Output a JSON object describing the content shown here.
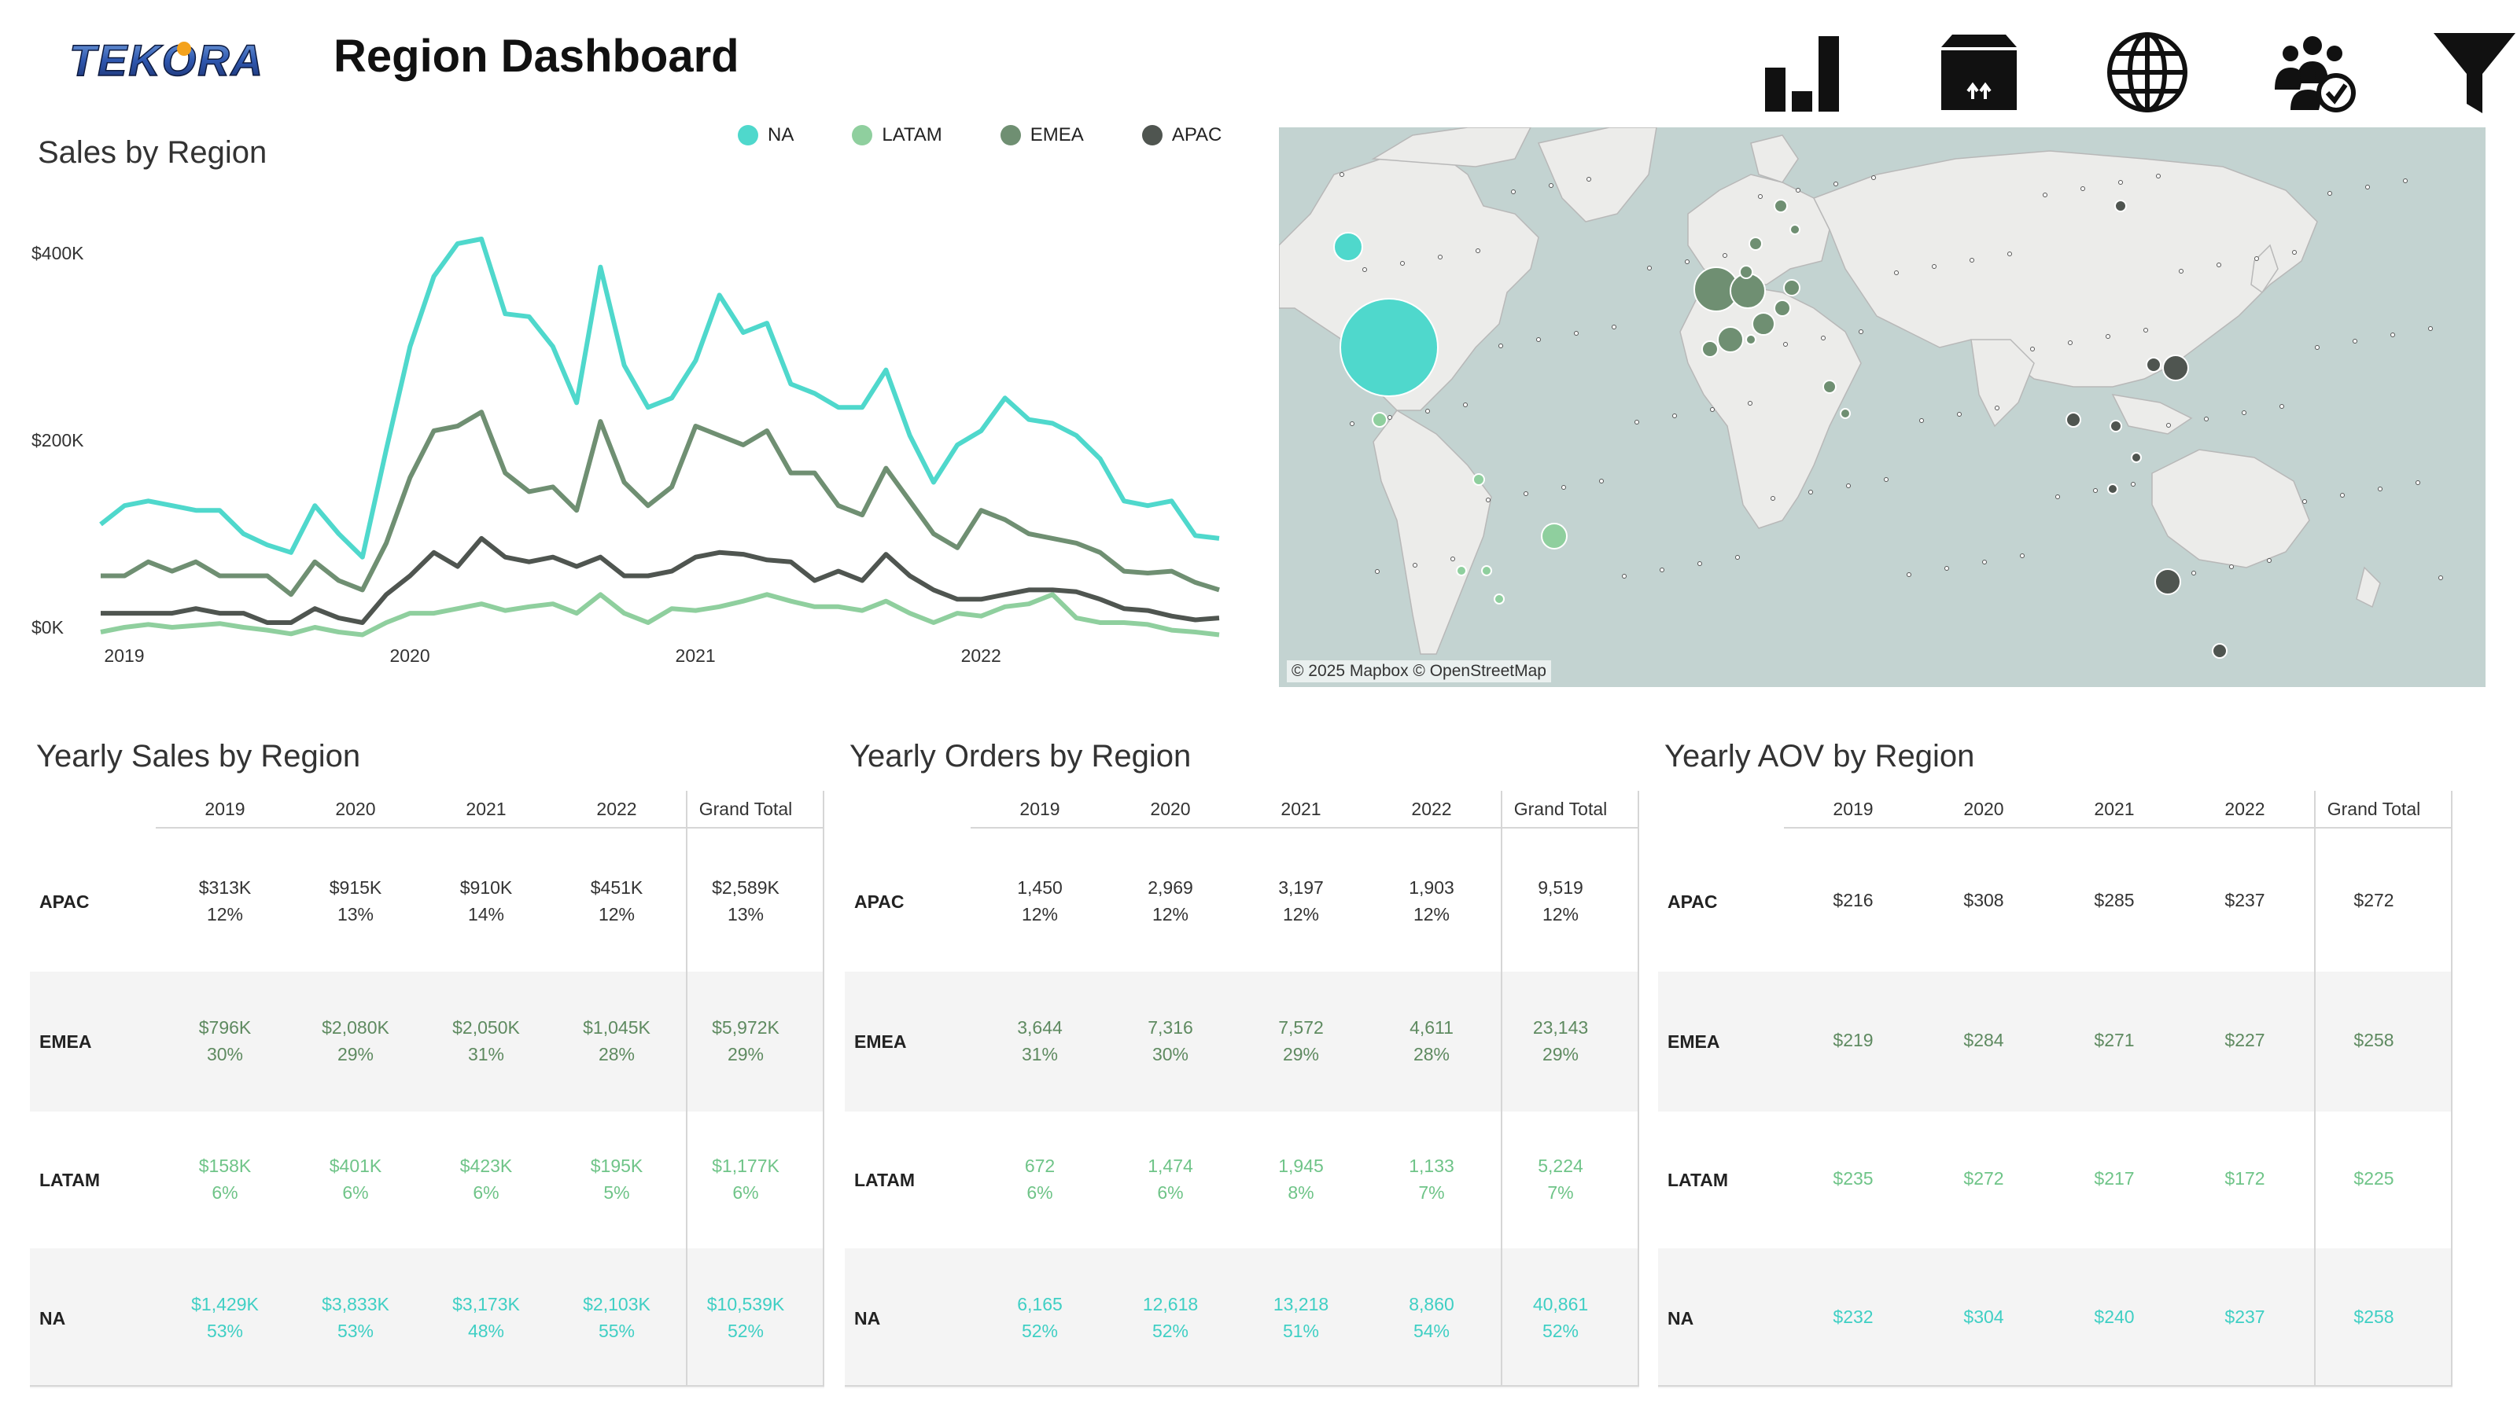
{
  "header": {
    "logo_text": "TEKORA",
    "title": "Region Dashboard",
    "nav_icons": [
      "bar-chart-icon",
      "package-icon",
      "globe-icon",
      "customers-check-icon",
      "filter-icon"
    ]
  },
  "colors": {
    "NA": "#4fd8cc",
    "LATAM": "#8fcf9e",
    "EMEA": "#6f8f72",
    "APAC": "#4f5550",
    "map_water": "#c3d3d1",
    "map_land": "#ececea"
  },
  "sales_chart": {
    "title": "Sales by Region",
    "legend": [
      "NA",
      "LATAM",
      "EMEA",
      "APAC"
    ],
    "y_ticks": [
      "$400K",
      "$200K",
      "$0K"
    ],
    "x_ticks": [
      "2019",
      "2020",
      "2021",
      "2022"
    ]
  },
  "chart_data": {
    "type": "line",
    "title": "Sales by Region",
    "xlabel": "",
    "ylabel": "",
    "ylim": [
      0,
      420000
    ],
    "y_tick_values": [
      0,
      200000,
      400000
    ],
    "x": [
      "2019-01",
      "2019-02",
      "2019-03",
      "2019-04",
      "2019-05",
      "2019-06",
      "2019-07",
      "2019-08",
      "2019-09",
      "2019-10",
      "2019-11",
      "2019-12",
      "2020-01",
      "2020-02",
      "2020-03",
      "2020-04",
      "2020-05",
      "2020-06",
      "2020-07",
      "2020-08",
      "2020-09",
      "2020-10",
      "2020-11",
      "2020-12",
      "2021-01",
      "2021-02",
      "2021-03",
      "2021-04",
      "2021-05",
      "2021-06",
      "2021-07",
      "2021-08",
      "2021-09",
      "2021-10",
      "2021-11",
      "2021-12",
      "2022-01",
      "2022-02",
      "2022-03",
      "2022-04",
      "2022-05",
      "2022-06",
      "2022-07",
      "2022-08",
      "2022-09",
      "2022-10",
      "2022-11",
      "2022-12"
    ],
    "series": [
      {
        "name": "NA",
        "values": [
          110000,
          130000,
          135000,
          130000,
          125000,
          125000,
          100000,
          88000,
          80000,
          130000,
          100000,
          75000,
          190000,
          300000,
          375000,
          410000,
          415000,
          335000,
          332000,
          300000,
          240000,
          385000,
          280000,
          235000,
          245000,
          285000,
          355000,
          315000,
          325000,
          260000,
          250000,
          235000,
          235000,
          275000,
          205000,
          155000,
          195000,
          210000,
          245000,
          222000,
          218000,
          205000,
          180000,
          135000,
          130000,
          135000,
          98000,
          95000
        ]
      },
      {
        "name": "LATAM",
        "values": [
          -5000,
          0,
          3000,
          0,
          2000,
          4000,
          0,
          -3000,
          -7000,
          0,
          -5000,
          -8000,
          5000,
          15000,
          15000,
          20000,
          25000,
          18000,
          22000,
          25000,
          15000,
          35000,
          15000,
          5000,
          20000,
          18000,
          22000,
          28000,
          35000,
          28000,
          22000,
          22000,
          18000,
          28000,
          15000,
          5000,
          15000,
          12000,
          22000,
          25000,
          35000,
          10000,
          5000,
          5000,
          3000,
          -3000,
          -5000,
          -8000
        ]
      },
      {
        "name": "EMEA",
        "values": [
          55000,
          55000,
          70000,
          60000,
          70000,
          55000,
          55000,
          55000,
          35000,
          70000,
          50000,
          40000,
          90000,
          160000,
          210000,
          215000,
          230000,
          165000,
          145000,
          150000,
          125000,
          220000,
          155000,
          130000,
          150000,
          215000,
          205000,
          195000,
          210000,
          165000,
          165000,
          130000,
          120000,
          170000,
          135000,
          100000,
          85000,
          125000,
          115000,
          100000,
          95000,
          90000,
          80000,
          60000,
          58000,
          60000,
          48000,
          40000
        ]
      },
      {
        "name": "APAC",
        "values": [
          15000,
          15000,
          15000,
          15000,
          20000,
          15000,
          15000,
          5000,
          5000,
          20000,
          10000,
          5000,
          35000,
          55000,
          80000,
          65000,
          95000,
          75000,
          70000,
          75000,
          65000,
          75000,
          55000,
          55000,
          60000,
          75000,
          80000,
          78000,
          72000,
          70000,
          50000,
          60000,
          50000,
          78000,
          55000,
          40000,
          30000,
          30000,
          35000,
          40000,
          40000,
          38000,
          30000,
          20000,
          18000,
          12000,
          8000,
          10000
        ]
      }
    ]
  },
  "map": {
    "attribution": "© 2025 Mapbox © OpenStreetMap"
  },
  "tables": [
    {
      "title": "Yearly Sales by Region",
      "columns": [
        "2019",
        "2020",
        "2021",
        "2022",
        "Grand Total"
      ],
      "rows": [
        {
          "label": "APAC",
          "cells": [
            [
              "$313K",
              "12%"
            ],
            [
              "$915K",
              "13%"
            ],
            [
              "$910K",
              "14%"
            ],
            [
              "$451K",
              "12%"
            ],
            [
              "$2,589K",
              "13%"
            ]
          ]
        },
        {
          "label": "EMEA",
          "cells": [
            [
              "$796K",
              "30%"
            ],
            [
              "$2,080K",
              "29%"
            ],
            [
              "$2,050K",
              "31%"
            ],
            [
              "$1,045K",
              "28%"
            ],
            [
              "$5,972K",
              "29%"
            ]
          ]
        },
        {
          "label": "LATAM",
          "cells": [
            [
              "$158K",
              "6%"
            ],
            [
              "$401K",
              "6%"
            ],
            [
              "$423K",
              "6%"
            ],
            [
              "$195K",
              "5%"
            ],
            [
              "$1,177K",
              "6%"
            ]
          ]
        },
        {
          "label": "NA",
          "cells": [
            [
              "$1,429K",
              "53%"
            ],
            [
              "$3,833K",
              "53%"
            ],
            [
              "$3,173K",
              "48%"
            ],
            [
              "$2,103K",
              "55%"
            ],
            [
              "$10,539K",
              "52%"
            ]
          ]
        }
      ]
    },
    {
      "title": "Yearly Orders by Region",
      "columns": [
        "2019",
        "2020",
        "2021",
        "2022",
        "Grand Total"
      ],
      "rows": [
        {
          "label": "APAC",
          "cells": [
            [
              "1,450",
              "12%"
            ],
            [
              "2,969",
              "12%"
            ],
            [
              "3,197",
              "12%"
            ],
            [
              "1,903",
              "12%"
            ],
            [
              "9,519",
              "12%"
            ]
          ]
        },
        {
          "label": "EMEA",
          "cells": [
            [
              "3,644",
              "31%"
            ],
            [
              "7,316",
              "30%"
            ],
            [
              "7,572",
              "29%"
            ],
            [
              "4,611",
              "28%"
            ],
            [
              "23,143",
              "29%"
            ]
          ]
        },
        {
          "label": "LATAM",
          "cells": [
            [
              "672",
              "6%"
            ],
            [
              "1,474",
              "6%"
            ],
            [
              "1,945",
              "8%"
            ],
            [
              "1,133",
              "7%"
            ],
            [
              "5,224",
              "7%"
            ]
          ]
        },
        {
          "label": "NA",
          "cells": [
            [
              "6,165",
              "52%"
            ],
            [
              "12,618",
              "52%"
            ],
            [
              "13,218",
              "51%"
            ],
            [
              "8,860",
              "54%"
            ],
            [
              "40,861",
              "52%"
            ]
          ]
        }
      ]
    },
    {
      "title": "Yearly AOV by Region",
      "columns": [
        "2019",
        "2020",
        "2021",
        "2022",
        "Grand Total"
      ],
      "rows": [
        {
          "label": "APAC",
          "cells": [
            [
              "$216"
            ],
            [
              "$308"
            ],
            [
              "$285"
            ],
            [
              "$237"
            ],
            [
              "$272"
            ]
          ]
        },
        {
          "label": "EMEA",
          "cells": [
            [
              "$219"
            ],
            [
              "$284"
            ],
            [
              "$271"
            ],
            [
              "$227"
            ],
            [
              "$258"
            ]
          ]
        },
        {
          "label": "LATAM",
          "cells": [
            [
              "$235"
            ],
            [
              "$272"
            ],
            [
              "$217"
            ],
            [
              "$172"
            ],
            [
              "$225"
            ]
          ]
        },
        {
          "label": "NA",
          "cells": [
            [
              "$232"
            ],
            [
              "$304"
            ],
            [
              "$240"
            ],
            [
              "$237"
            ],
            [
              "$258"
            ]
          ]
        }
      ]
    }
  ]
}
